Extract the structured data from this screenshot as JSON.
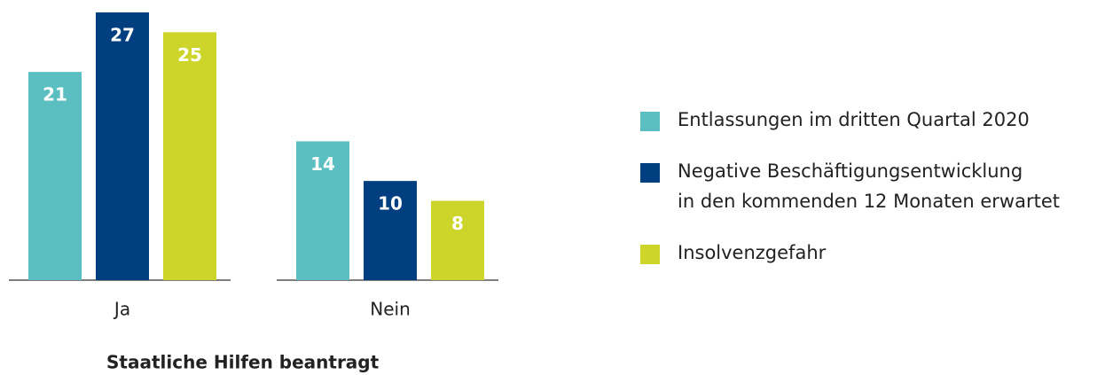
{
  "chart_data": {
    "type": "bar",
    "xlabel": "Staatliche Hilfen beantragt",
    "categories": [
      "Ja",
      "Nein"
    ],
    "series": [
      {
        "name": "Entlassungen im dritten Quartal 2020",
        "color": "#5bbfc1",
        "values": [
          21,
          14
        ]
      },
      {
        "name": "Negative Beschäftigungsentwicklung\nin den kommenden 12 Monaten erwartet",
        "color": "#003f7f",
        "values": [
          27,
          10
        ]
      },
      {
        "name": "Insolvenzgefahr",
        "color": "#cdd52a",
        "values": [
          25,
          8
        ]
      }
    ],
    "legend": "right"
  }
}
